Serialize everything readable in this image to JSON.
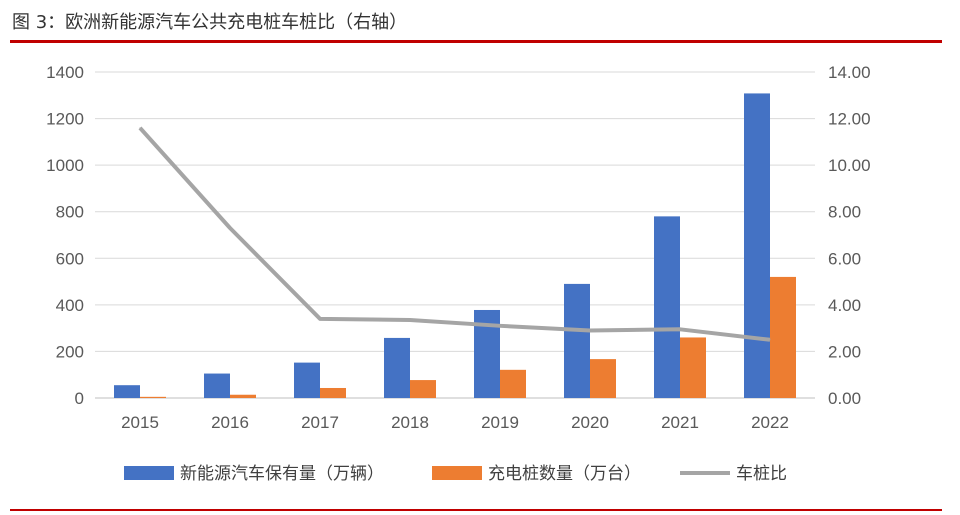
{
  "title": "图 3：欧洲新能源汽车公共充电桩车桩比（右轴）",
  "chart_data": {
    "type": "bar",
    "categories": [
      "2015",
      "2016",
      "2017",
      "2018",
      "2019",
      "2020",
      "2021",
      "2022"
    ],
    "series": [
      {
        "name": "新能源汽车保有量（万辆）",
        "type": "bar",
        "axis": "left",
        "color": "#4472c4",
        "values": [
          55,
          105,
          152,
          258,
          378,
          490,
          780,
          1308
        ]
      },
      {
        "name": "充电桩数量（万台）",
        "type": "bar",
        "axis": "left",
        "color": "#ed7d31",
        "values": [
          5,
          14,
          43,
          77,
          121,
          167,
          260,
          520
        ]
      },
      {
        "name": "车桩比",
        "type": "line",
        "axis": "right",
        "color": "#a5a5a5",
        "values": [
          11.6,
          7.3,
          3.4,
          3.35,
          3.1,
          2.9,
          2.95,
          2.5
        ]
      }
    ],
    "y_left": {
      "min": 0,
      "max": 1400,
      "ticks": [
        "0",
        "200",
        "400",
        "600",
        "800",
        "1000",
        "1200",
        "1400"
      ]
    },
    "y_right": {
      "min": 0,
      "max": 14,
      "ticks": [
        "0.00",
        "2.00",
        "4.00",
        "6.00",
        "8.00",
        "10.00",
        "12.00",
        "14.00"
      ]
    },
    "grid": true,
    "legend": "bottom"
  }
}
